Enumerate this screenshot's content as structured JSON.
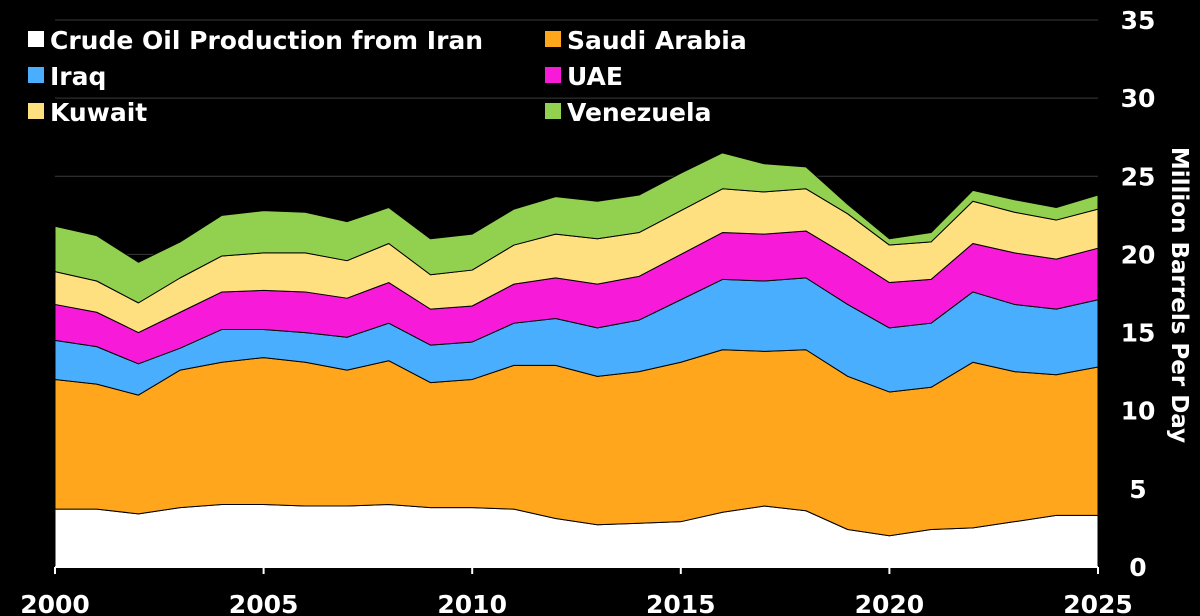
{
  "chart_data": {
    "type": "area",
    "stacked": true,
    "ylabel": "Million Barrels Per Day",
    "xlim": [
      2000,
      2025
    ],
    "ylim": [
      0,
      35
    ],
    "x_ticks": [
      "2000",
      "2005",
      "2010",
      "2015",
      "2020",
      "2025"
    ],
    "y_ticks": [
      "0",
      "5",
      "10",
      "15",
      "20",
      "25",
      "30",
      "35"
    ],
    "y_axis_position": "right",
    "grid": "horizontal",
    "legend_position": "top-left",
    "x": [
      2000,
      2001,
      2002,
      2003,
      2004,
      2005,
      2006,
      2007,
      2008,
      2009,
      2010,
      2011,
      2012,
      2013,
      2014,
      2015,
      2016,
      2017,
      2018,
      2019,
      2020,
      2021,
      2022,
      2023,
      2024,
      2025
    ],
    "series": [
      {
        "name": "Crude Oil Production from Iran",
        "color": "#ffffff",
        "values": [
          3.7,
          3.7,
          3.4,
          3.8,
          4.0,
          4.0,
          3.9,
          3.9,
          4.0,
          3.8,
          3.8,
          3.7,
          3.1,
          2.7,
          2.8,
          2.9,
          3.5,
          3.9,
          3.6,
          2.4,
          2.0,
          2.4,
          2.5,
          2.9,
          3.3,
          3.3
        ]
      },
      {
        "name": "Saudi Arabia",
        "color": "#ffa61c",
        "values": [
          8.3,
          8.0,
          7.6,
          8.8,
          9.1,
          9.4,
          9.2,
          8.7,
          9.2,
          8.0,
          8.2,
          9.2,
          9.8,
          9.5,
          9.7,
          10.2,
          10.4,
          9.9,
          10.3,
          9.8,
          9.2,
          9.1,
          10.6,
          9.6,
          9.0,
          9.5
        ]
      },
      {
        "name": "Iraq",
        "color": "#4aaeff",
        "values": [
          2.5,
          2.4,
          2.0,
          1.4,
          2.1,
          1.8,
          1.9,
          2.1,
          2.4,
          2.4,
          2.4,
          2.7,
          3.0,
          3.1,
          3.3,
          4.0,
          4.5,
          4.5,
          4.6,
          4.6,
          4.1,
          4.1,
          4.5,
          4.3,
          4.2,
          4.3
        ]
      },
      {
        "name": "UAE",
        "color": "#f71bd9",
        "values": [
          2.3,
          2.2,
          2.0,
          2.3,
          2.4,
          2.5,
          2.6,
          2.5,
          2.6,
          2.3,
          2.3,
          2.5,
          2.6,
          2.8,
          2.8,
          2.9,
          3.0,
          3.0,
          3.0,
          3.1,
          2.9,
          2.8,
          3.1,
          3.3,
          3.2,
          3.3
        ]
      },
      {
        "name": "Kuwait",
        "color": "#ffe080",
        "values": [
          2.1,
          2.0,
          1.9,
          2.2,
          2.3,
          2.4,
          2.5,
          2.4,
          2.5,
          2.2,
          2.3,
          2.5,
          2.8,
          2.9,
          2.8,
          2.8,
          2.8,
          2.7,
          2.7,
          2.7,
          2.4,
          2.4,
          2.7,
          2.6,
          2.5,
          2.5
        ]
      },
      {
        "name": "Venezuela",
        "color": "#92d050",
        "values": [
          2.9,
          2.9,
          2.6,
          2.3,
          2.6,
          2.7,
          2.6,
          2.5,
          2.3,
          2.3,
          2.3,
          2.3,
          2.4,
          2.4,
          2.4,
          2.4,
          2.3,
          1.8,
          1.4,
          0.6,
          0.4,
          0.6,
          0.7,
          0.8,
          0.8,
          0.9
        ]
      }
    ]
  }
}
